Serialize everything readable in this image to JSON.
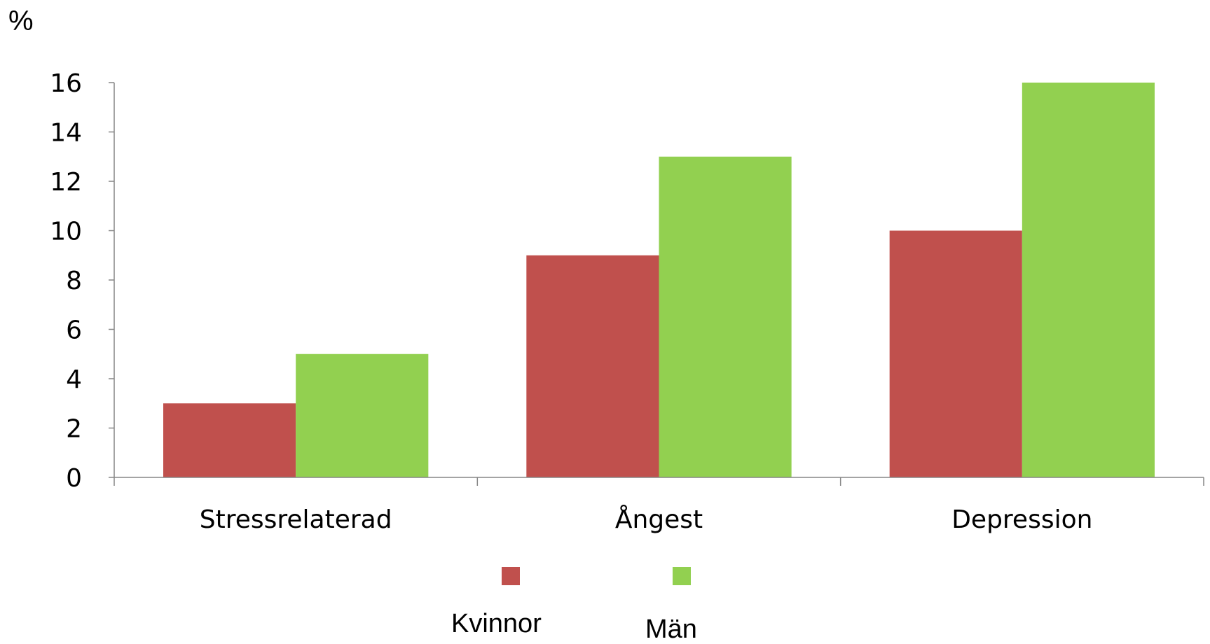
{
  "chart_data": {
    "type": "bar",
    "unit_label": "%",
    "categories": [
      "Stressrelaterad",
      "Ångest",
      "Depression"
    ],
    "series": [
      {
        "name": "Kvinnor",
        "values": [
          3,
          9,
          10
        ],
        "color": "#c0504d"
      },
      {
        "name": "Män",
        "values": [
          5,
          13,
          16
        ],
        "color": "#92d050"
      }
    ],
    "ylim": [
      0,
      16
    ],
    "yticks": [
      0,
      2,
      4,
      6,
      8,
      10,
      12,
      14,
      16
    ],
    "grid": false,
    "legend_position": "bottom"
  }
}
